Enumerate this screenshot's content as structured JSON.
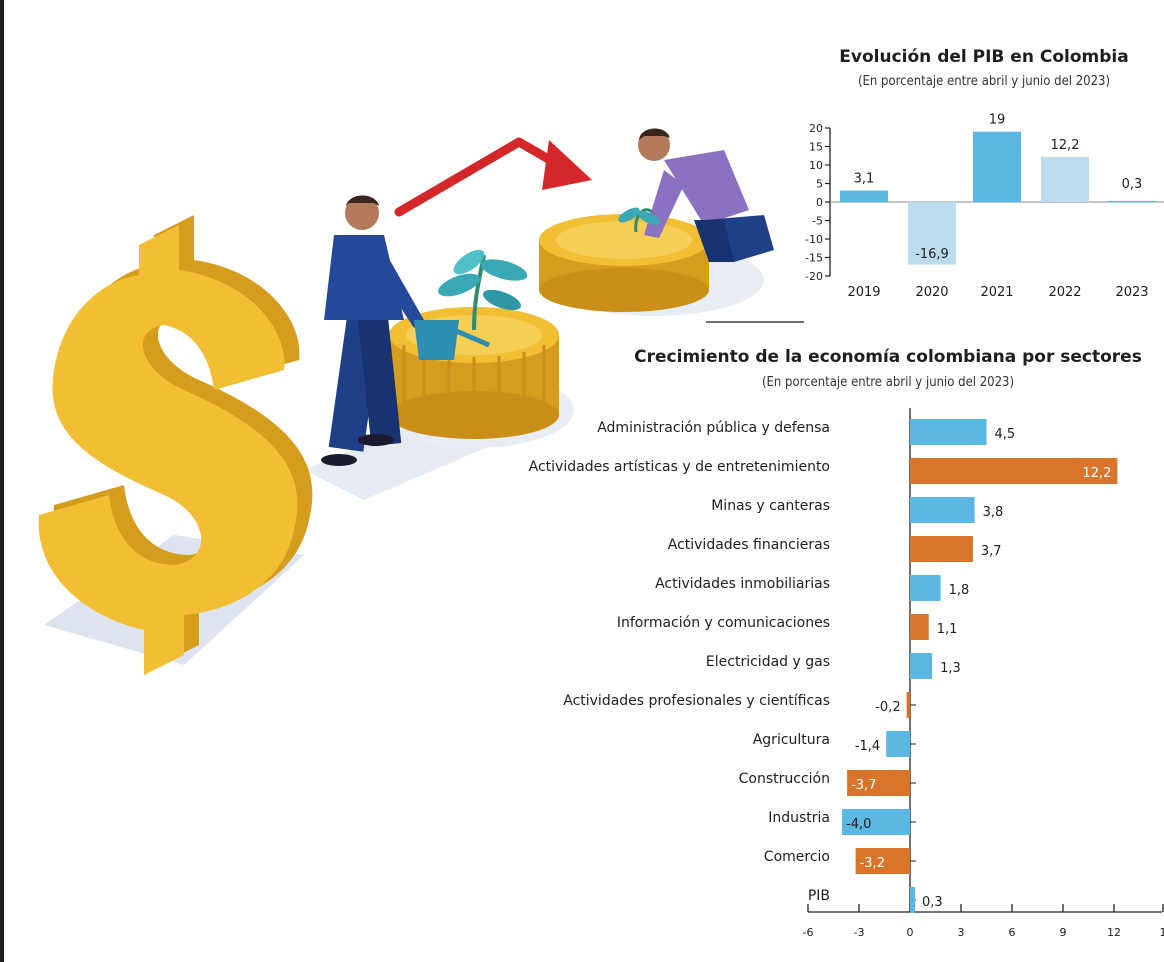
{
  "colors": {
    "blue": "#5ab8e2",
    "light_blue": "#bcdcee",
    "orange": "#d9742b",
    "coin_gold": "#f2bf34",
    "coin_dark": "#d59d1d",
    "arrow_red": "#d3272a",
    "suit_navy": "#1f3f86",
    "shirt_purple": "#8a72c0",
    "leaf_teal": "#3aa9b5",
    "axis": "#222222"
  },
  "illustration": {
    "icons": [
      "dollar-sign-icon",
      "growth-arrow-icon",
      "businessman-watering-plant",
      "man-planting-seedling",
      "coin-stack-icon"
    ]
  },
  "chart_data": [
    {
      "type": "bar",
      "title": "Evolución del PIB en Colombia",
      "subtitle": "(En porcentaje entre abril y junio del 2023)",
      "categories": [
        "2019",
        "2020",
        "2021",
        "2022",
        "2023"
      ],
      "values": [
        3.1,
        -16.9,
        19,
        12.2,
        0.3
      ],
      "value_labels": [
        "3,1",
        "-16,9",
        "19",
        "12,2",
        "0,3"
      ],
      "bar_colors": [
        "#5ab8e2",
        "#bcdcee",
        "#5ab8e2",
        "#bcdcee",
        "#5ab8e2"
      ],
      "yticks": [
        "20",
        "15",
        "10",
        "5",
        "0",
        "-5",
        "-10",
        "-15",
        "-20"
      ],
      "ylim": [
        -20,
        20
      ],
      "grid": false
    },
    {
      "type": "bar",
      "orientation": "horizontal",
      "title": "Crecimiento de la economía colombiana por sectores",
      "subtitle": "(En porcentaje entre abril y junio del 2023)",
      "categories": [
        "Administración pública y defensa",
        "Actividades artísticas y de entretenimiento",
        "Minas y canteras",
        "Actividades financieras",
        "Actividades inmobiliarias",
        "Información y comunicaciones",
        "Electricidad y gas",
        "Actividades profesionales y científicas",
        "Agricultura",
        "Construcción",
        "Industria",
        "Comercio",
        "PIB"
      ],
      "values": [
        4.5,
        12.2,
        3.8,
        3.7,
        1.8,
        1.1,
        1.3,
        -0.2,
        -1.4,
        -3.7,
        -4.0,
        -3.2,
        0.3
      ],
      "value_labels": [
        "4,5",
        "12,2",
        "3,8",
        "3,7",
        "1,8",
        "1,1",
        "1,3",
        "-0,2",
        "-1,4",
        "-3,7",
        "-4,0",
        "-3,2",
        "0,3"
      ],
      "bar_colors": [
        "#5ab8e2",
        "#d9742b",
        "#5ab8e2",
        "#d9742b",
        "#5ab8e2",
        "#d9742b",
        "#5ab8e2",
        "#d9742b",
        "#5ab8e2",
        "#d9742b",
        "#5ab8e2",
        "#d9742b",
        "#5ab8e2"
      ],
      "xticks": [
        "-6",
        "-3",
        "0",
        "3",
        "6",
        "9",
        "12",
        "1"
      ],
      "xlim": [
        -6,
        15
      ],
      "grid": false
    }
  ]
}
